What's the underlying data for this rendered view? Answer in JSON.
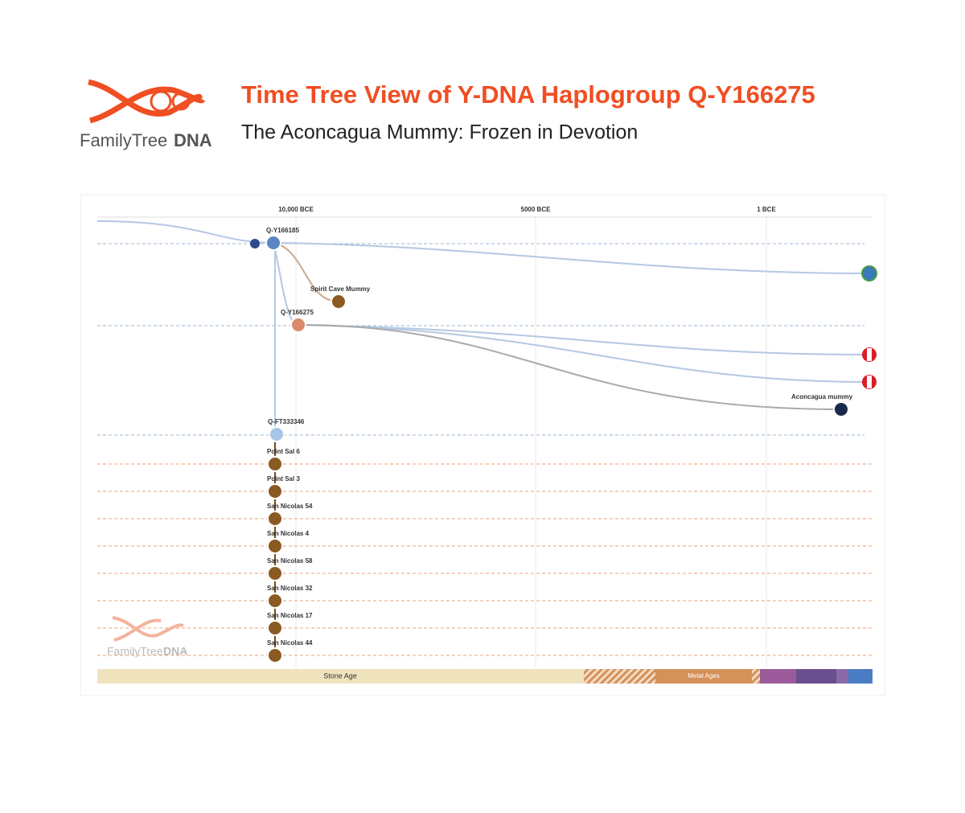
{
  "header": {
    "logo": {
      "light": "FamilyTree",
      "bold": "DNA"
    },
    "title": "Time Tree View of Y-DNA Haplogroup Q-Y166275",
    "subtitle": "The Aconcagua Mummy: Frozen in Devotion"
  },
  "timeline": {
    "axis_labels": [
      "10,000 BCE",
      "5000 BCE",
      "1 BCE"
    ],
    "nodes": [
      "Q-Y166185",
      "Spirit Cave Mummy",
      "Q-Y166275",
      "Aconcagua mummy",
      "Q-FT333346"
    ],
    "samples": [
      "Point Sal 6",
      "Point Sal 3",
      "San Nicolas 54",
      "San Nicolas 4",
      "San Nicolas 58",
      "San Nicolas 32",
      "San Nicolas 17",
      "San Nicolas 44"
    ],
    "ages": [
      "Stone Age",
      "Metal Ages"
    ]
  }
}
